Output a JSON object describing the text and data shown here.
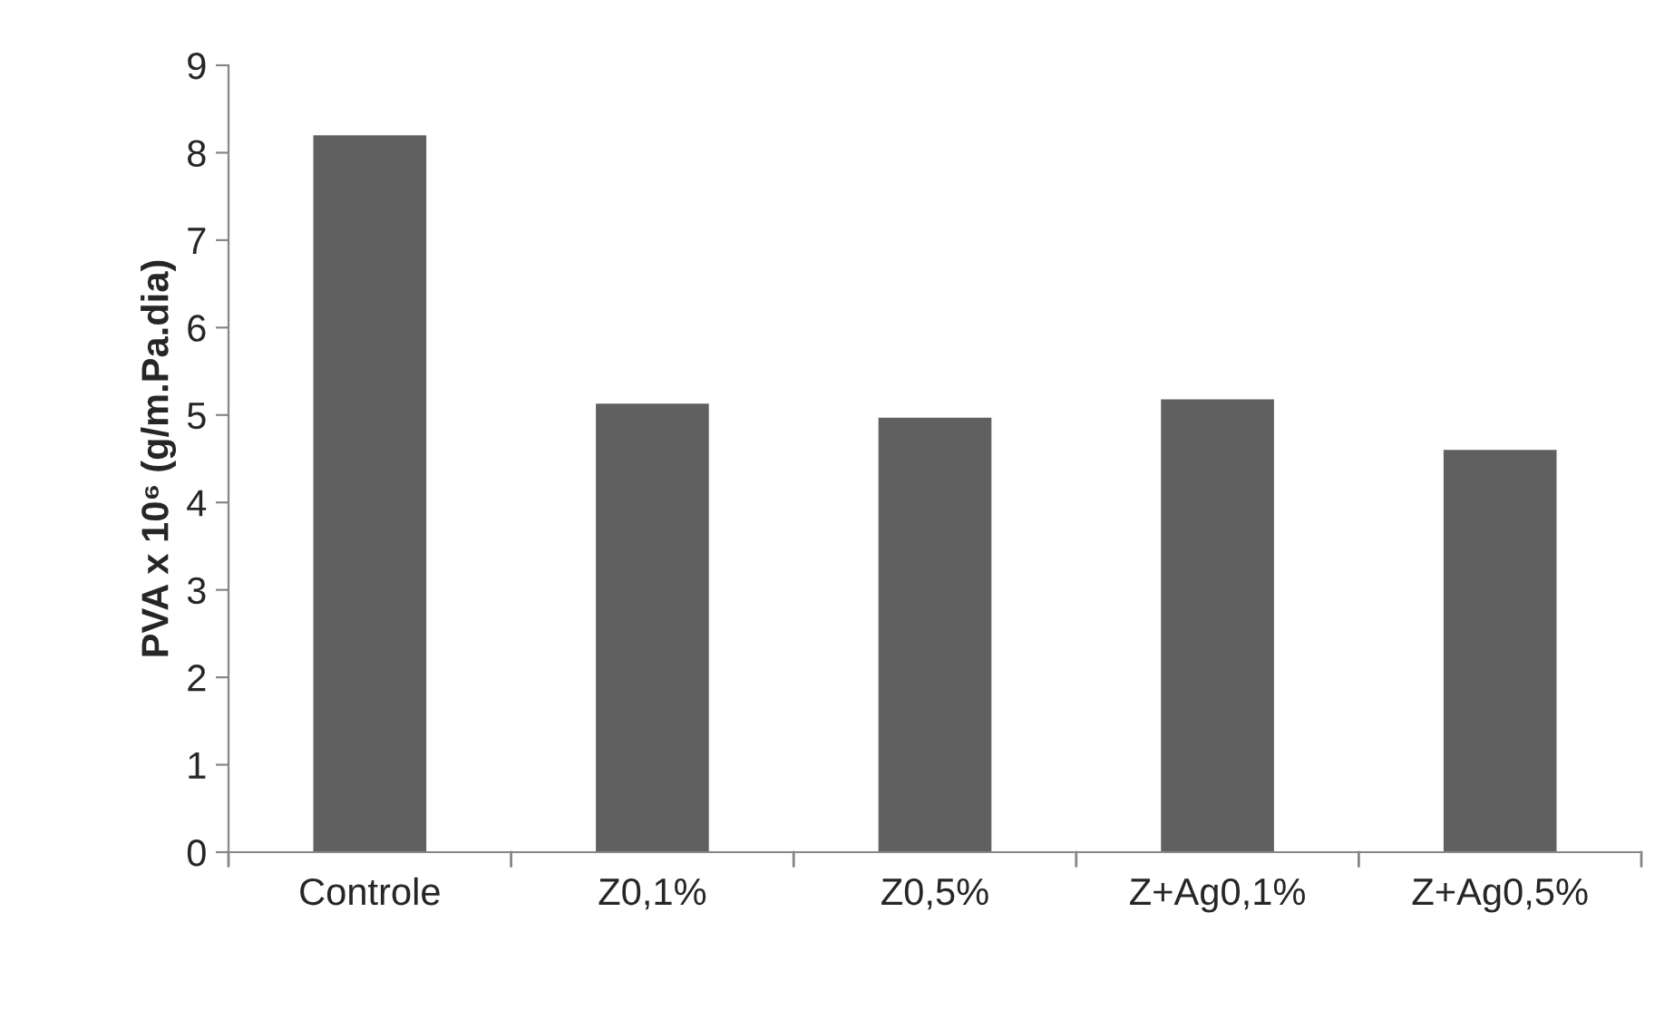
{
  "chart_data": {
    "type": "bar",
    "ylabel": "PVA x 10⁶ (g/m.Pa.dia)",
    "categories": [
      "Controle",
      "Z0,1%",
      "Z0,5%",
      "Z+Ag0,1%",
      "Z+Ag0,5%"
    ],
    "values": [
      8.2,
      5.13,
      4.97,
      5.18,
      4.6
    ],
    "color": "#606060",
    "ylim": [
      0,
      9
    ],
    "yticks": [
      0,
      1,
      2,
      3,
      4,
      5,
      6,
      7,
      8,
      9
    ],
    "grid": false,
    "legend": false
  }
}
